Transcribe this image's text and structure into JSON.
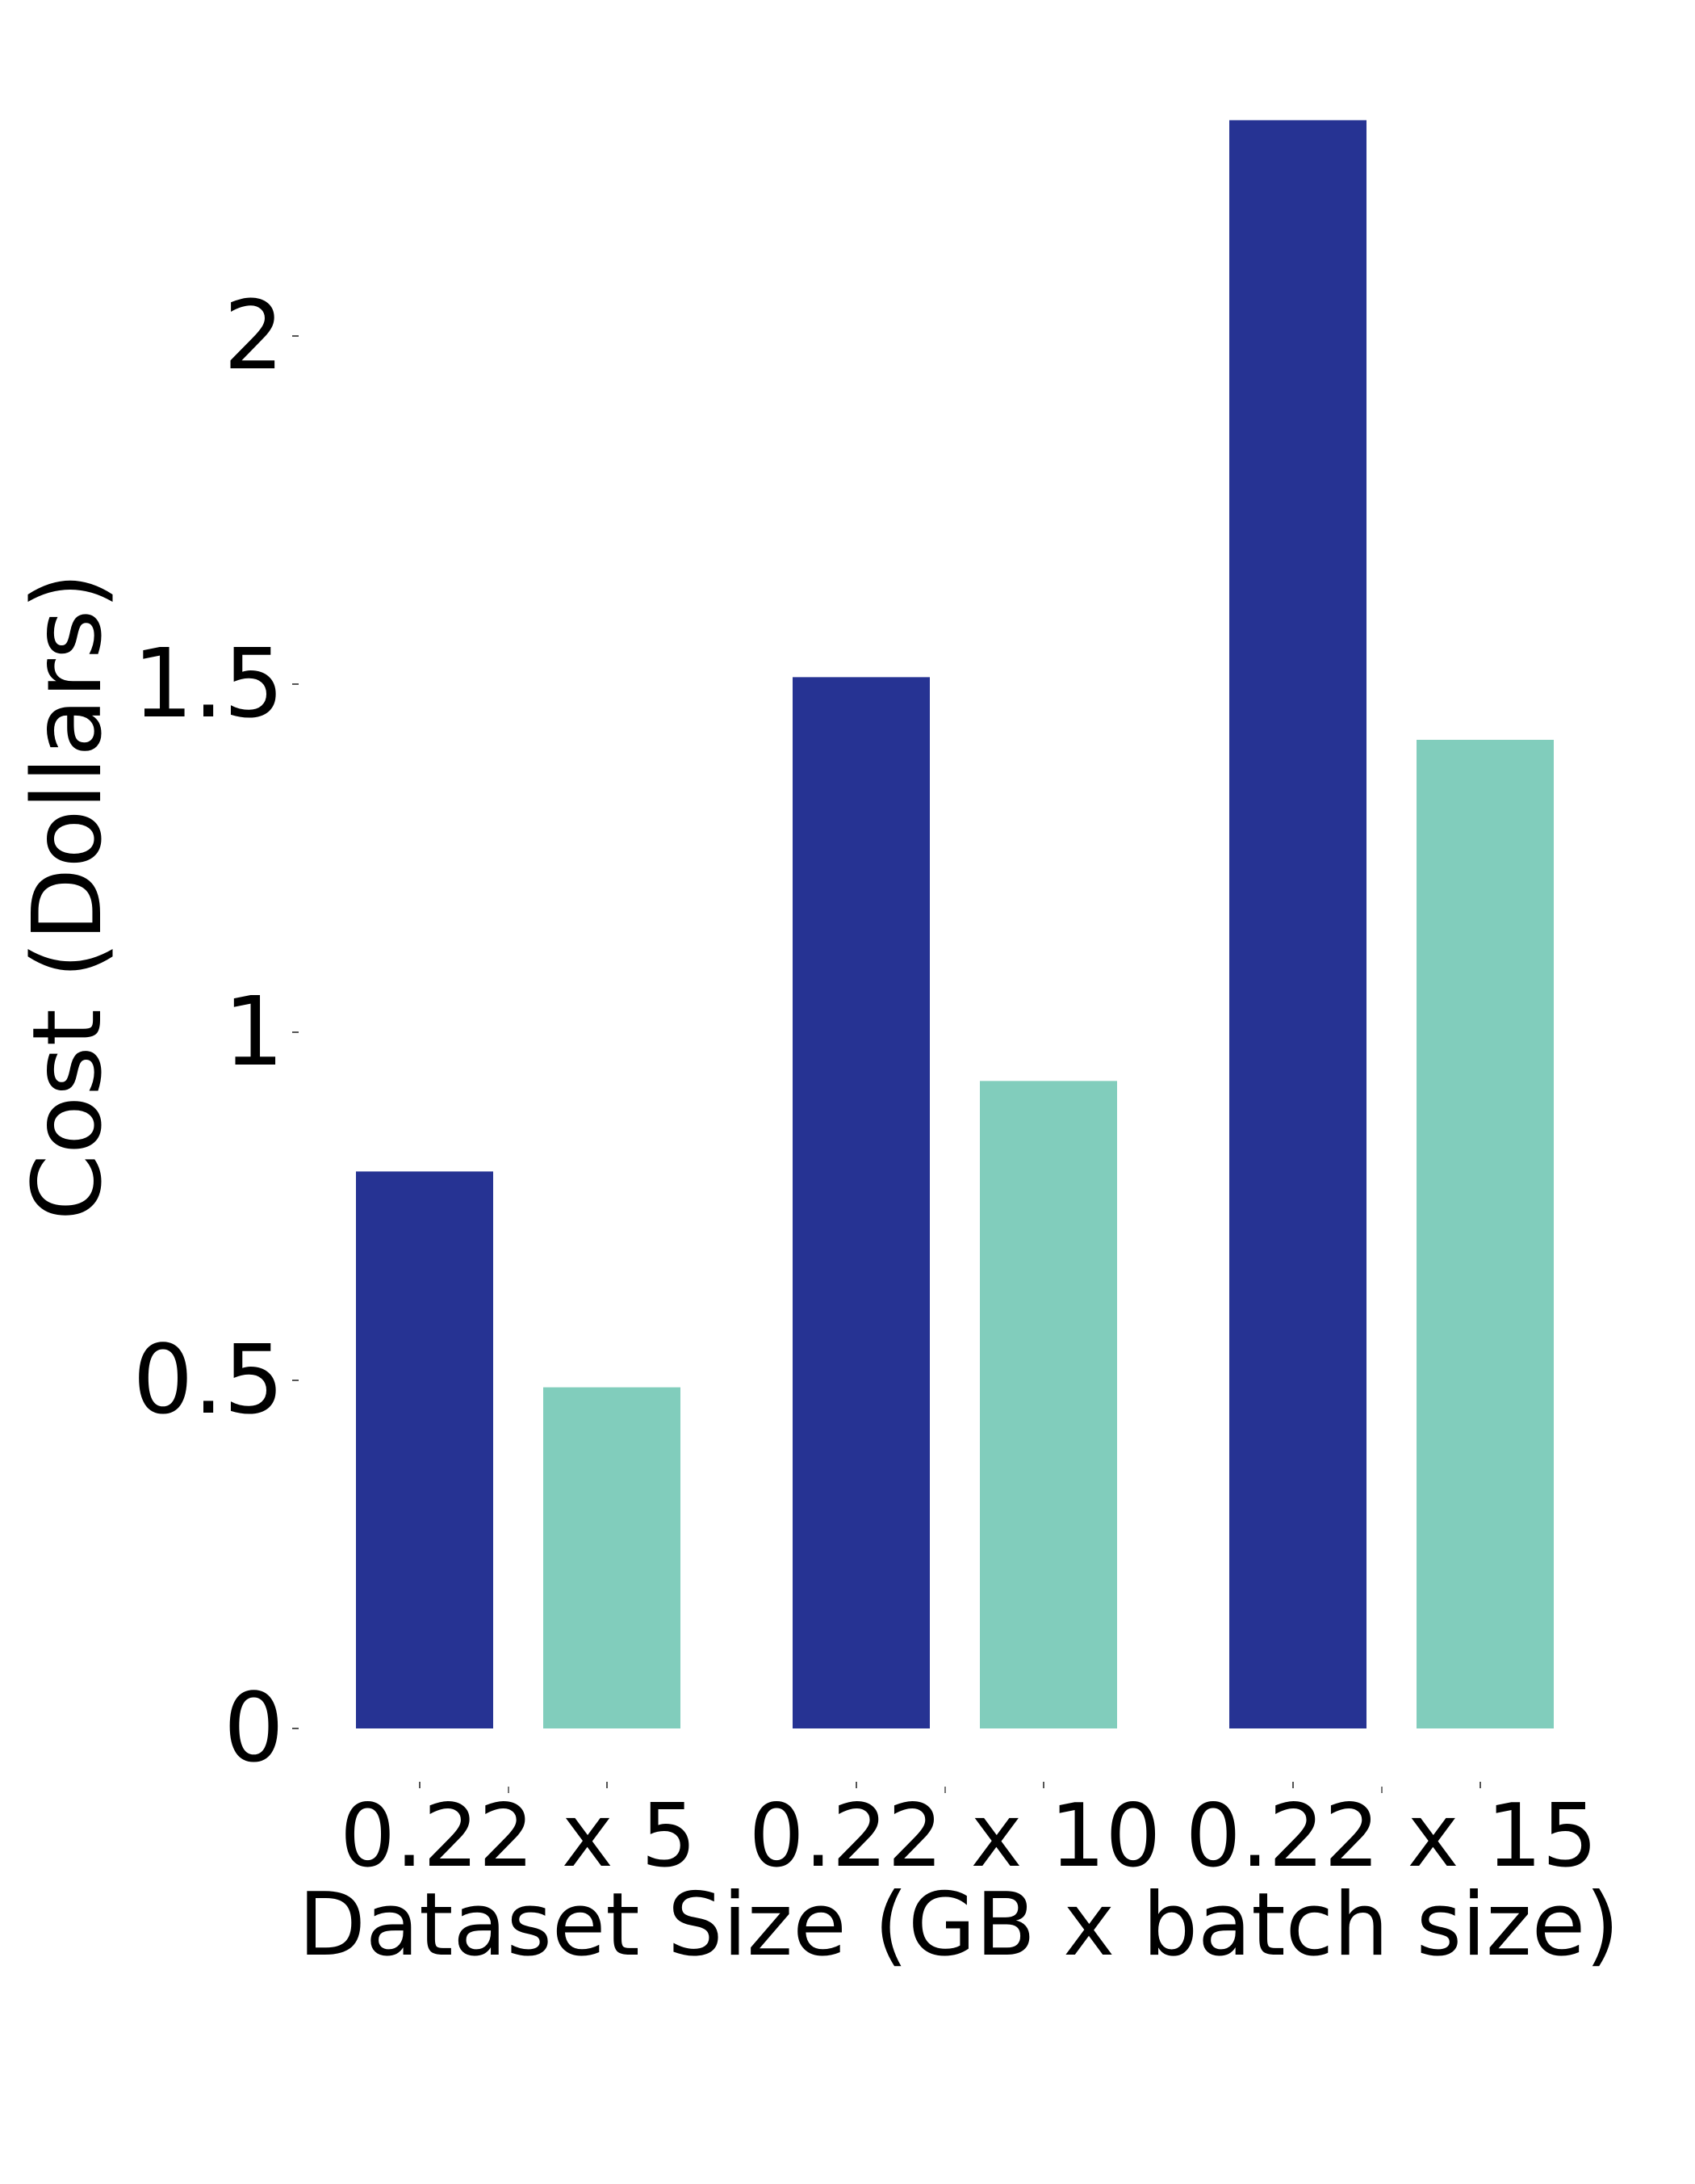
{
  "chart_data": {
    "type": "bar",
    "title": "",
    "xlabel": "Dataset Size (GB x batch size)",
    "ylabel": "Cost (Dollars)",
    "categories": [
      "0.22 x 5",
      "0.22 x 10",
      "0.22 x 15"
    ],
    "series": [
      {
        "values": [
          0.8,
          1.51,
          2.31
        ],
        "color": "#263393"
      },
      {
        "values": [
          0.49,
          0.93,
          1.42
        ],
        "color": "#81CDBC"
      }
    ],
    "ylim": [
      0,
      2.31
    ],
    "yticks": [
      0,
      0.5,
      1,
      1.5,
      2
    ],
    "ytick_labels": [
      "0",
      "0.5",
      "1",
      "1.5",
      "2"
    ],
    "grid": false,
    "legend": "none"
  }
}
